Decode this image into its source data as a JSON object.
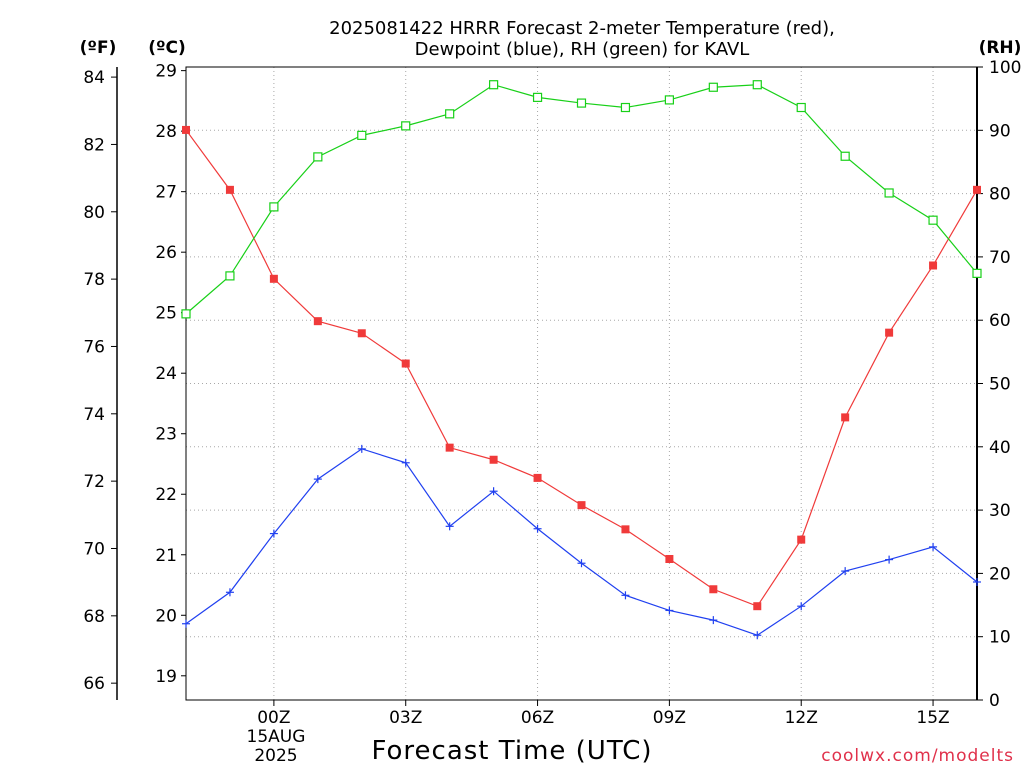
{
  "chart_data": {
    "type": "line",
    "title_line1": "2025081422 HRRR Forecast 2-meter Temperature (red),",
    "title_line2": "Dewpoint (blue), RH (green) for KAVL",
    "left_units_f": "(ºF)",
    "left_units_c": "(ºC)",
    "right_units": "(RH)",
    "xlabel": "Forecast Time (UTC)",
    "credit": "coolwx.com/modelts",
    "date_labels": [
      "15AUG",
      "2025"
    ],
    "x_hours": [
      -2,
      -1,
      0,
      1,
      2,
      3,
      4,
      5,
      6,
      7,
      8,
      9,
      10,
      11,
      12,
      13,
      14,
      15,
      16
    ],
    "x_ticks": [
      {
        "hour": 0,
        "label": "00Z"
      },
      {
        "hour": 3,
        "label": "03Z"
      },
      {
        "hour": 6,
        "label": "06Z"
      },
      {
        "hour": 9,
        "label": "09Z"
      },
      {
        "hour": 12,
        "label": "12Z"
      },
      {
        "hour": 15,
        "label": "15Z"
      }
    ],
    "xlim": [
      -2,
      16
    ],
    "axes": {
      "celsius": {
        "lim": [
          18.6,
          29.06
        ],
        "ticks": [
          19,
          20,
          21,
          22,
          23,
          24,
          25,
          26,
          27,
          28,
          29
        ]
      },
      "fahrenheit": {
        "lim": [
          65.5,
          84.3
        ],
        "ticks": [
          66,
          68,
          70,
          72,
          74,
          76,
          78,
          80,
          82,
          84
        ]
      },
      "rh": {
        "lim": [
          0,
          100
        ],
        "ticks": [
          0,
          10,
          20,
          30,
          40,
          50,
          60,
          70,
          80,
          90,
          100
        ]
      }
    },
    "grid": true,
    "series": [
      {
        "name": "Temperature",
        "color": "#f03a3a",
        "axis": "celsius",
        "marker": "filled-square",
        "values": [
          28.02,
          27.03,
          25.56,
          24.86,
          24.66,
          24.16,
          22.77,
          22.57,
          22.27,
          21.82,
          21.42,
          20.93,
          20.43,
          20.15,
          21.25,
          23.27,
          24.67,
          25.78,
          27.03
        ]
      },
      {
        "name": "Dewpoint",
        "color": "#2040f0",
        "axis": "celsius",
        "marker": "plus",
        "values": [
          19.86,
          20.38,
          21.35,
          22.25,
          22.75,
          22.52,
          21.47,
          22.05,
          21.43,
          20.86,
          20.33,
          20.08,
          19.92,
          19.67,
          20.15,
          20.73,
          20.92,
          21.13,
          20.55
        ]
      },
      {
        "name": "RH",
        "color": "#18d018",
        "axis": "rh",
        "marker": "open-square",
        "values": [
          61.0,
          67.0,
          77.9,
          85.8,
          89.2,
          90.7,
          92.6,
          97.2,
          95.2,
          94.3,
          93.6,
          94.8,
          96.8,
          97.2,
          93.6,
          85.9,
          80.1,
          75.8,
          67.4
        ]
      }
    ]
  }
}
